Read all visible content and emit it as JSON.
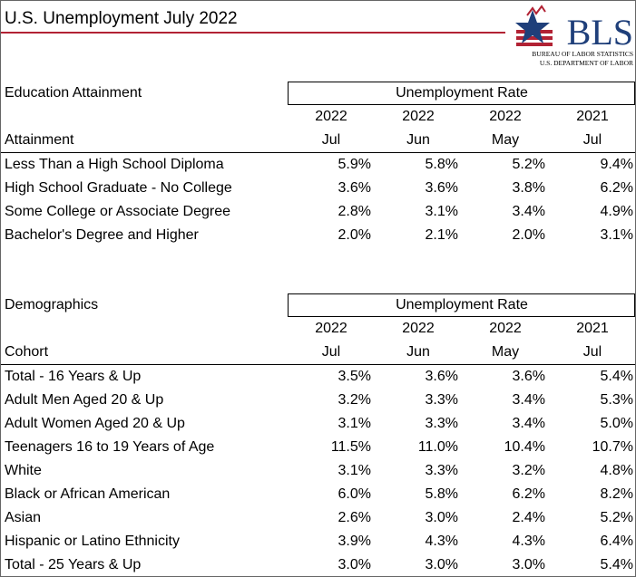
{
  "header": {
    "title": "U.S. Unemployment July 2022",
    "logo": {
      "mark": "BLS",
      "line1": "BUREAU OF LABOR STATISTICS",
      "line2": "U.S. DEPARTMENT OF LABOR"
    }
  },
  "sections": [
    {
      "title": "Education Attainment",
      "group_header": "Unemployment Rate",
      "years": [
        "2022",
        "2022",
        "2022",
        "2021"
      ],
      "row_label_header": "Attainment",
      "months": [
        "Jul",
        "Jun",
        "May",
        "Jul"
      ],
      "rows": [
        {
          "label": "Less Than a High School Diploma",
          "values": [
            "5.9%",
            "5.8%",
            "5.2%",
            "9.4%"
          ]
        },
        {
          "label": "High School Graduate - No College",
          "values": [
            "3.6%",
            "3.6%",
            "3.8%",
            "6.2%"
          ]
        },
        {
          "label": "Some College or Associate Degree",
          "values": [
            "2.8%",
            "3.1%",
            "3.4%",
            "4.9%"
          ]
        },
        {
          "label": "Bachelor's Degree and Higher",
          "values": [
            "2.0%",
            "2.1%",
            "2.0%",
            "3.1%"
          ]
        }
      ]
    },
    {
      "title": "Demographics",
      "group_header": "Unemployment Rate",
      "years": [
        "2022",
        "2022",
        "2022",
        "2021"
      ],
      "row_label_header": "Cohort",
      "months": [
        "Jul",
        "Jun",
        "May",
        "Jul"
      ],
      "rows": [
        {
          "label": "Total - 16 Years & Up",
          "values": [
            "3.5%",
            "3.6%",
            "3.6%",
            "5.4%"
          ]
        },
        {
          "label": "Adult Men Aged 20 & Up",
          "values": [
            "3.2%",
            "3.3%",
            "3.4%",
            "5.3%"
          ]
        },
        {
          "label": "Adult Women Aged 20 & Up",
          "values": [
            "3.1%",
            "3.3%",
            "3.4%",
            "5.0%"
          ]
        },
        {
          "label": "Teenagers 16 to 19 Years of Age",
          "values": [
            "11.5%",
            "11.0%",
            "10.4%",
            "10.7%"
          ]
        },
        {
          "label": "White",
          "values": [
            "3.1%",
            "3.3%",
            "3.2%",
            "4.8%"
          ]
        },
        {
          "label": "Black or African American",
          "values": [
            "6.0%",
            "5.8%",
            "6.2%",
            "8.2%"
          ]
        },
        {
          "label": "Asian",
          "values": [
            "2.6%",
            "3.0%",
            "2.4%",
            "5.2%"
          ]
        },
        {
          "label": "Hispanic or Latino Ethnicity",
          "values": [
            "3.9%",
            "4.3%",
            "4.3%",
            "6.4%"
          ]
        },
        {
          "label": "Total - 25 Years & Up",
          "values": [
            "3.0%",
            "3.0%",
            "3.0%",
            "5.4%"
          ]
        }
      ]
    }
  ]
}
